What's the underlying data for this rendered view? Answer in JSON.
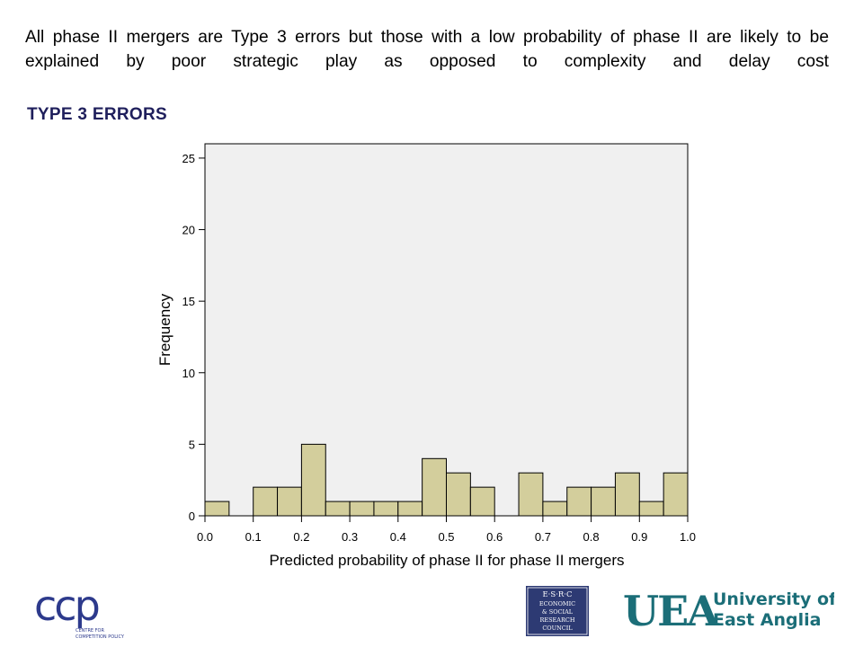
{
  "slide": {
    "headline": "All phase II mergers are Type 3 errors but those with a low probability of phase II are likely to be explained by poor strategic play as opposed to complexity and delay cost",
    "section_title": "TYPE 3 ERRORS"
  },
  "chart_data": {
    "type": "bar",
    "subtype": "histogram",
    "xlabel": "Predicted probability of phase II for phase II mergers",
    "ylabel": "Frequency",
    "xlim": [
      0.0,
      1.0
    ],
    "ylim": [
      0,
      26
    ],
    "x_ticks": [
      "0.0",
      "0.1",
      "0.2",
      "0.3",
      "0.4",
      "0.5",
      "0.6",
      "0.7",
      "0.8",
      "0.9",
      "1.0"
    ],
    "y_ticks": [
      "0",
      "5",
      "10",
      "15",
      "20",
      "25"
    ],
    "bin_width": 0.05,
    "bins": [
      {
        "start": 0.0,
        "end": 0.05,
        "count": 1
      },
      {
        "start": 0.05,
        "end": 0.1,
        "count": 0
      },
      {
        "start": 0.1,
        "end": 0.15,
        "count": 2
      },
      {
        "start": 0.15,
        "end": 0.2,
        "count": 2
      },
      {
        "start": 0.2,
        "end": 0.25,
        "count": 5
      },
      {
        "start": 0.25,
        "end": 0.3,
        "count": 1
      },
      {
        "start": 0.3,
        "end": 0.35,
        "count": 1
      },
      {
        "start": 0.35,
        "end": 0.4,
        "count": 1
      },
      {
        "start": 0.4,
        "end": 0.45,
        "count": 1
      },
      {
        "start": 0.45,
        "end": 0.5,
        "count": 4
      },
      {
        "start": 0.5,
        "end": 0.55,
        "count": 3
      },
      {
        "start": 0.55,
        "end": 0.6,
        "count": 2
      },
      {
        "start": 0.6,
        "end": 0.65,
        "count": 0
      },
      {
        "start": 0.65,
        "end": 0.7,
        "count": 3
      },
      {
        "start": 0.7,
        "end": 0.75,
        "count": 1
      },
      {
        "start": 0.75,
        "end": 0.8,
        "count": 2
      },
      {
        "start": 0.8,
        "end": 0.85,
        "count": 2
      },
      {
        "start": 0.85,
        "end": 0.9,
        "count": 3
      },
      {
        "start": 0.9,
        "end": 0.95,
        "count": 1
      },
      {
        "start": 0.95,
        "end": 1.0,
        "count": 3
      }
    ],
    "colors": {
      "bar_fill": "#d3ce9c",
      "bar_stroke": "#000000",
      "plot_background": "#f0f0f0"
    },
    "grid": false,
    "legend": "none"
  },
  "logos": {
    "ccp": {
      "mark": "ccp",
      "caption": "CENTRE FOR COMPETITION POLICY",
      "color": "#2d3a8c"
    },
    "esrc": {
      "lines": [
        "E·S·R·C",
        "ECONOMIC",
        "& SOCIAL",
        "RESEARCH",
        "COUNCIL"
      ],
      "color": "#2d3a73"
    },
    "uea": {
      "mark": "UEA",
      "line1": "University of",
      "line2": "East Anglia",
      "color": "#1b6e78"
    }
  }
}
